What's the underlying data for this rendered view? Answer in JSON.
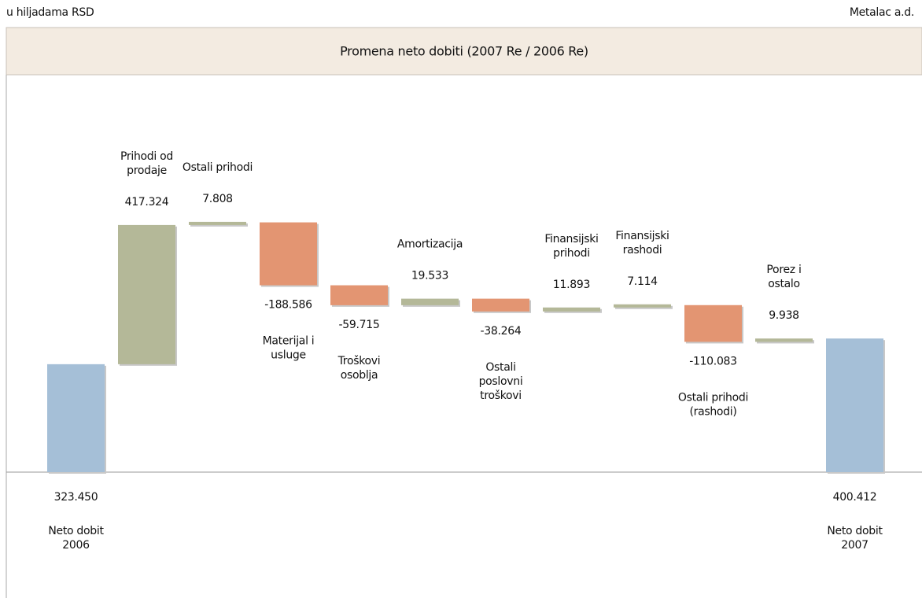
{
  "chart_data": {
    "type": "waterfall",
    "unit_note": "u hiljadama RSD",
    "company": "Metalac a.d.",
    "title": "Promena neto dobiti (2007 Re / 2006 Re)",
    "categories": [
      [
        "Neto dobit",
        "2006"
      ],
      [
        "Prihodi od",
        "prodaje"
      ],
      [
        "Ostali prihodi"
      ],
      [
        "Materijal i",
        "usluge"
      ],
      [
        "Troškovi",
        "osoblja"
      ],
      [
        "Amortizacija"
      ],
      [
        "Ostali",
        "poslovni",
        "troškovi"
      ],
      [
        "Finansijski",
        "prihodi"
      ],
      [
        "Finansijski",
        "rashodi"
      ],
      [
        "Ostali prihodi",
        "(rashodi)"
      ],
      [
        "Porez i",
        "ostalo"
      ],
      [
        "Neto dobit",
        "2007"
      ]
    ],
    "values": [
      323450,
      417324,
      7808,
      -188586,
      -59715,
      19533,
      -38264,
      11893,
      7114,
      -110083,
      9938,
      400412
    ],
    "value_labels": [
      "323.450",
      "417.324",
      "7.808",
      "-188.586",
      "-59.715",
      "19.533",
      "-38.264",
      "11.893",
      "7.114",
      "-110.083",
      "9.938",
      "400.412"
    ],
    "colors": {
      "total": "#a5bfd7",
      "increase": "#b4b898",
      "decrease": "#e39572"
    }
  }
}
